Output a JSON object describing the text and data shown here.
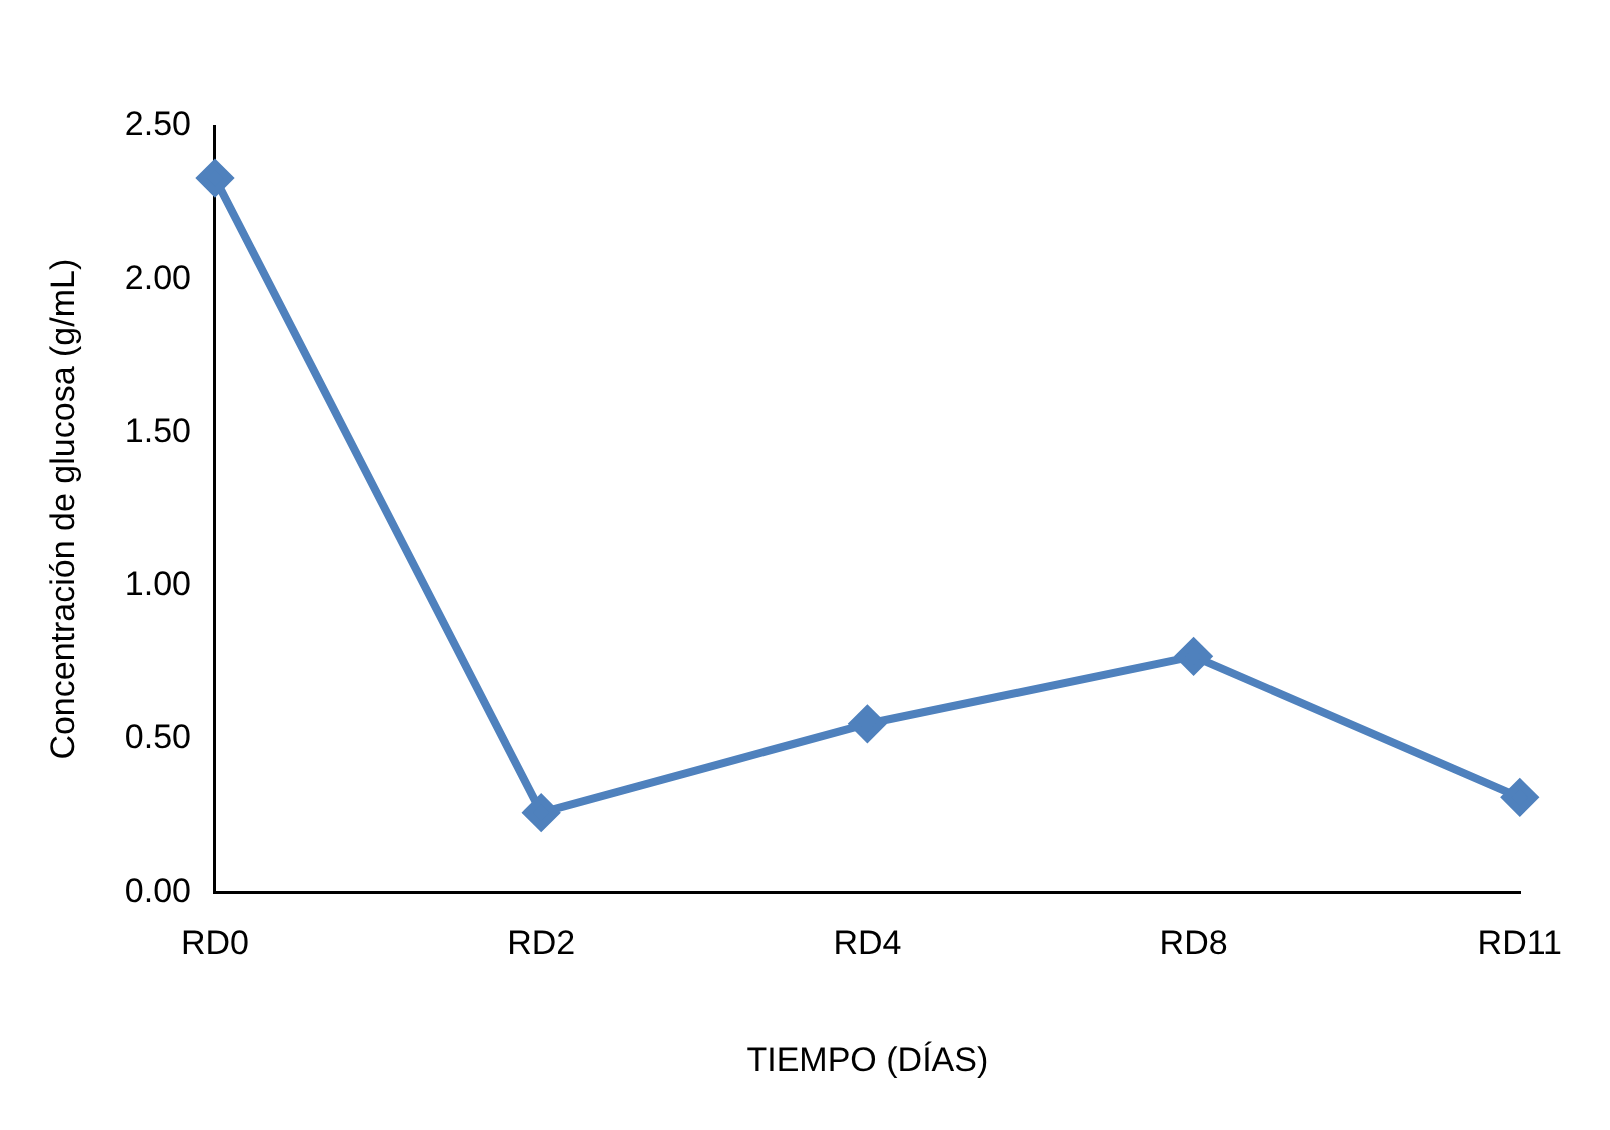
{
  "chart_data": {
    "type": "line",
    "xlabel": "TIEMPO (DÍAS)",
    "ylabel": "Concentración de glucosa (g/mL)",
    "categories": [
      "RD0",
      "RD2",
      "RD4",
      "RD8",
      "RD11"
    ],
    "series": [
      {
        "color": "#4f81bd",
        "values": [
          2.33,
          0.26,
          0.55,
          0.77,
          0.31
        ]
      }
    ],
    "ylim": [
      0,
      2.5
    ],
    "yticks": [
      {
        "value": 0,
        "label": "0.00"
      },
      {
        "value": 0.5,
        "label": "0.50"
      },
      {
        "value": 1,
        "label": "1.00"
      },
      {
        "value": 1.5,
        "label": "1.50"
      },
      {
        "value": 2,
        "label": "2.00"
      },
      {
        "value": 2.5,
        "label": "2.50"
      }
    ],
    "grid": false,
    "legend": false,
    "marker": "diamond",
    "line_style": "solid"
  }
}
